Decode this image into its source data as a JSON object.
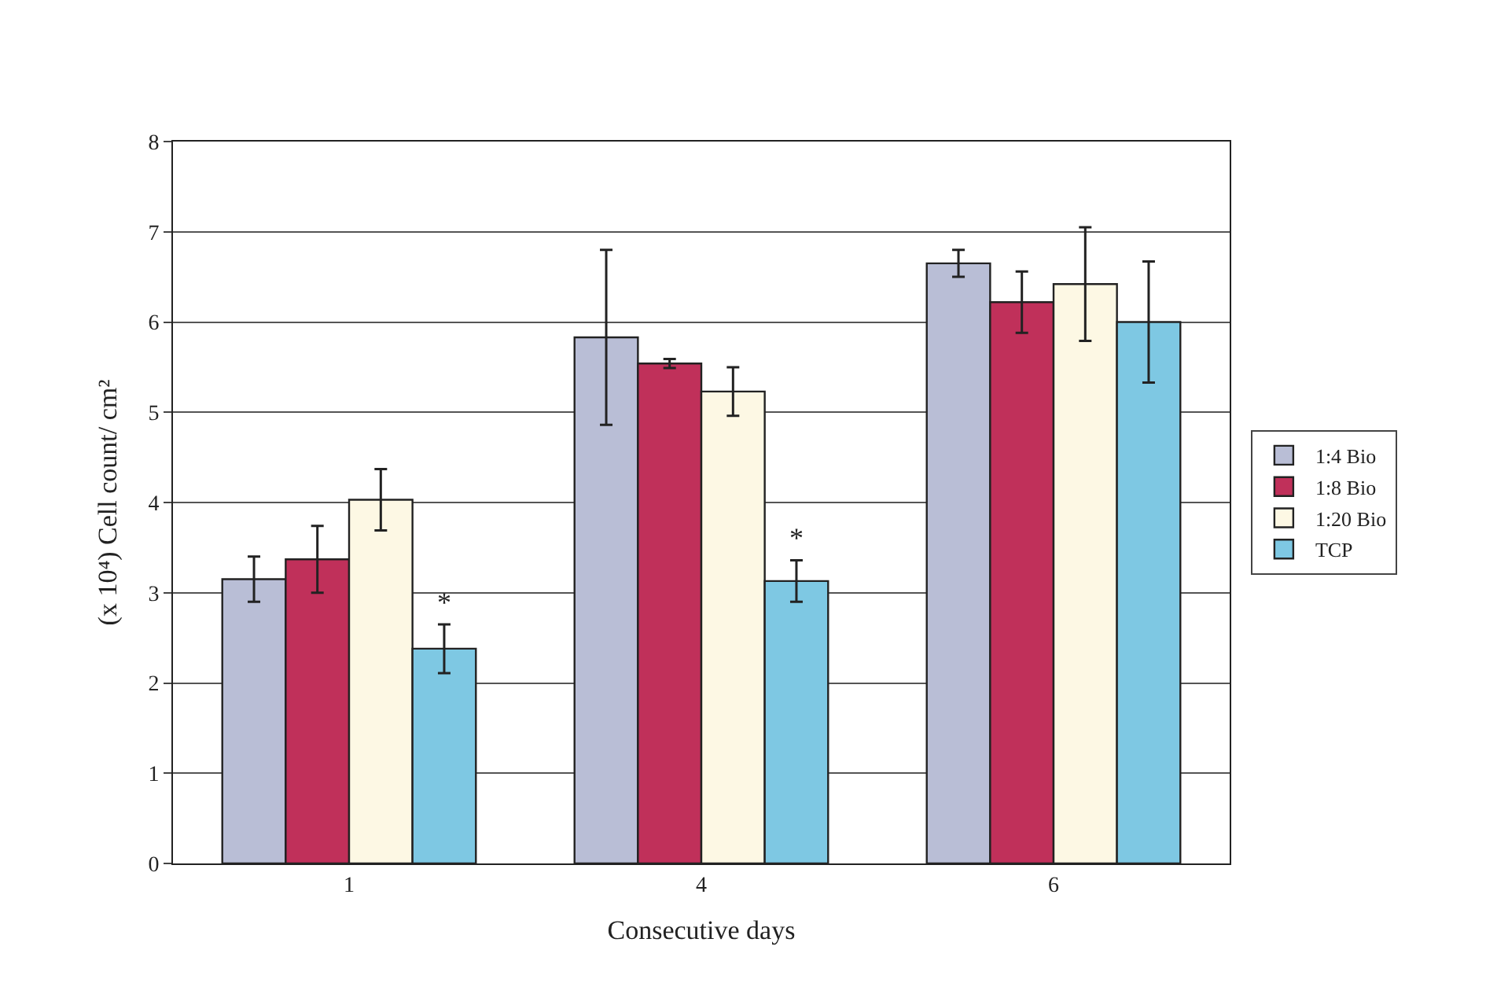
{
  "chart_data": {
    "type": "bar",
    "xlabel": "Consecutive days",
    "ylabel": "(x 10⁴) Cell count/ cm²",
    "categories": [
      "1",
      "4",
      "6"
    ],
    "series": [
      {
        "name": "1:4 Bio",
        "color": "#b9bed6",
        "values": [
          3.15,
          5.83,
          6.65
        ],
        "errors": [
          0.25,
          0.97,
          0.15
        ]
      },
      {
        "name": "1:8 Bio",
        "color": "#c0305a",
        "values": [
          3.37,
          5.54,
          6.22
        ],
        "errors": [
          0.37,
          0.05,
          0.34
        ]
      },
      {
        "name": "1:20 Bio",
        "color": "#fdf8e4",
        "values": [
          4.03,
          5.23,
          6.42
        ],
        "errors": [
          0.34,
          0.27,
          0.63
        ]
      },
      {
        "name": "TCP",
        "color": "#7ec8e3",
        "values": [
          2.38,
          3.13,
          6.0
        ],
        "errors": [
          0.27,
          0.23,
          0.67
        ]
      }
    ],
    "ylim": [
      0,
      8
    ],
    "yticks": [
      0,
      1,
      2,
      3,
      4,
      5,
      6,
      7,
      8
    ],
    "grid": "y",
    "legend": "right",
    "annotations": [
      "*",
      "*"
    ]
  }
}
